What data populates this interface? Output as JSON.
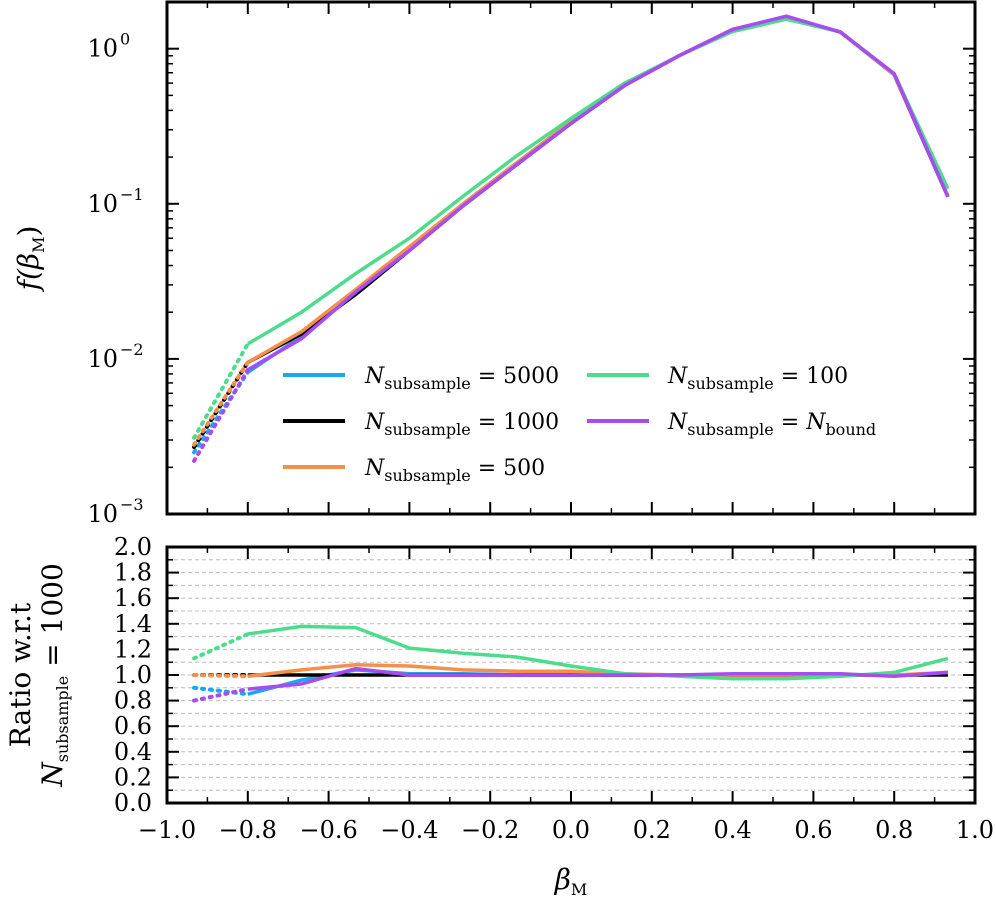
{
  "chart_data": [
    {
      "type": "line",
      "panel": "top",
      "yscale": "log",
      "ylabel": "f(β_M)",
      "ylabel_main": "f(",
      "ylabel_sym": "β",
      "ylabel_sub": "M",
      "ylabel_close": ")",
      "xlim": [
        -1.0,
        1.0
      ],
      "ylim": [
        0.001,
        2.0
      ],
      "yticks": [
        {
          "value": 0.001,
          "base": "10",
          "exp": "−3"
        },
        {
          "value": 0.01,
          "base": "10",
          "exp": "−2"
        },
        {
          "value": 0.1,
          "base": "10",
          "exp": "−1"
        },
        {
          "value": 1,
          "base": "10",
          "exp": "0"
        }
      ],
      "x": [
        -0.933,
        -0.8,
        -0.667,
        -0.533,
        -0.4,
        -0.267,
        -0.133,
        0.0,
        0.133,
        0.267,
        0.4,
        0.533,
        0.667,
        0.8,
        0.933
      ],
      "dotted_segment": "first point to second point",
      "series": [
        {
          "name": "N_subsample = 5000",
          "label_main": "N",
          "label_sub": "subsample",
          "label_eq": " = 5000",
          "color": "#1aa7ec",
          "values": [
            0.0025,
            0.0082,
            0.014,
            0.027,
            0.052,
            0.1,
            0.185,
            0.335,
            0.58,
            0.9,
            1.32,
            1.6,
            1.28,
            0.68,
            0.112
          ]
        },
        {
          "name": "N_subsample = 1000",
          "label_main": "N",
          "label_sub": "subsample",
          "label_eq": " = 1000",
          "color": "#000000",
          "values": [
            0.0027,
            0.0095,
            0.0145,
            0.026,
            0.05,
            0.097,
            0.18,
            0.33,
            0.58,
            0.9,
            1.33,
            1.6,
            1.28,
            0.68,
            0.111
          ]
        },
        {
          "name": "N_subsample = 500",
          "label_main": "N",
          "label_sub": "subsample",
          "label_eq": " = 500",
          "color": "#f5904a",
          "values": [
            0.0028,
            0.0095,
            0.015,
            0.028,
            0.053,
            0.1,
            0.185,
            0.34,
            0.58,
            0.9,
            1.33,
            1.6,
            1.28,
            0.68,
            0.113
          ]
        },
        {
          "name": "N_subsample = 100",
          "label_main": "N",
          "label_sub": "subsample",
          "label_eq": " = 100",
          "color": "#4ddc8c",
          "values": [
            0.0031,
            0.0125,
            0.02,
            0.0355,
            0.06,
            0.112,
            0.205,
            0.355,
            0.6,
            0.9,
            1.29,
            1.55,
            1.28,
            0.69,
            0.125
          ]
        },
        {
          "name": "N_subsample = N_bound",
          "label_main": "N",
          "label_sub": "subsample",
          "label_eq": " = ",
          "label_main2": "N",
          "label_sub2": "bound",
          "color": "#a64cf0",
          "values": [
            0.0022,
            0.0085,
            0.0135,
            0.027,
            0.05,
            0.097,
            0.18,
            0.33,
            0.58,
            0.9,
            1.33,
            1.62,
            1.28,
            0.69,
            0.111
          ]
        }
      ]
    },
    {
      "type": "line",
      "panel": "bottom",
      "xlabel": "β_M",
      "xlabel_sym": "β",
      "xlabel_sub": "M",
      "ylabel_line1": "Ratio w.r.t",
      "ylabel_line2_main": "N",
      "ylabel_line2_sub": "subsample",
      "ylabel_line2_eq": " = 1000",
      "xlim": [
        -1.0,
        1.0
      ],
      "ylim": [
        0.0,
        2.0
      ],
      "grid": true,
      "xticks": [
        "−1.0",
        "−0.8",
        "−0.6",
        "−0.4",
        "−0.2",
        "0.0",
        "0.2",
        "0.4",
        "0.6",
        "0.8",
        "1.0"
      ],
      "xtick_values": [
        -1.0,
        -0.8,
        -0.6,
        -0.4,
        -0.2,
        0.0,
        0.2,
        0.4,
        0.6,
        0.8,
        1.0
      ],
      "yticks": [
        "0.0",
        "0.2",
        "0.4",
        "0.6",
        "0.8",
        "1.0",
        "1.2",
        "1.4",
        "1.6",
        "1.8",
        "2.0"
      ],
      "ytick_values": [
        0.0,
        0.2,
        0.4,
        0.6,
        0.8,
        1.0,
        1.2,
        1.4,
        1.6,
        1.8,
        2.0
      ],
      "x": [
        -0.933,
        -0.8,
        -0.667,
        -0.533,
        -0.4,
        -0.267,
        -0.133,
        0.0,
        0.133,
        0.267,
        0.4,
        0.533,
        0.667,
        0.8,
        0.933
      ],
      "series": [
        {
          "name": "N_subsample = 5000",
          "color": "#1aa7ec",
          "values": [
            0.9,
            0.85,
            0.96,
            1.04,
            1.01,
            1.01,
            1.0,
            1.01,
            1.0,
            1.0,
            1.0,
            1.0,
            1.0,
            1.0,
            1.01
          ]
        },
        {
          "name": "N_subsample = 1000",
          "color": "#000000",
          "values": [
            1.0,
            1.0,
            1.0,
            1.0,
            1.0,
            1.0,
            1.0,
            1.0,
            1.0,
            1.0,
            1.0,
            1.0,
            1.0,
            1.0,
            1.0
          ]
        },
        {
          "name": "N_subsample = 500",
          "color": "#f5904a",
          "values": [
            1.0,
            0.99,
            1.04,
            1.08,
            1.07,
            1.04,
            1.03,
            1.03,
            1.01,
            1.0,
            1.0,
            1.0,
            1.0,
            1.0,
            1.02
          ]
        },
        {
          "name": "N_subsample = 100",
          "color": "#4ddc8c",
          "values": [
            1.13,
            1.32,
            1.38,
            1.37,
            1.21,
            1.17,
            1.14,
            1.07,
            1.01,
            0.99,
            0.97,
            0.97,
            0.99,
            1.02,
            1.13
          ]
        },
        {
          "name": "N_subsample = N_bound",
          "color": "#a64cf0",
          "values": [
            0.8,
            0.89,
            0.93,
            1.05,
            1.0,
            1.0,
            1.0,
            1.0,
            1.0,
            1.0,
            1.01,
            1.01,
            1.01,
            0.99,
            1.02
          ]
        }
      ]
    }
  ]
}
